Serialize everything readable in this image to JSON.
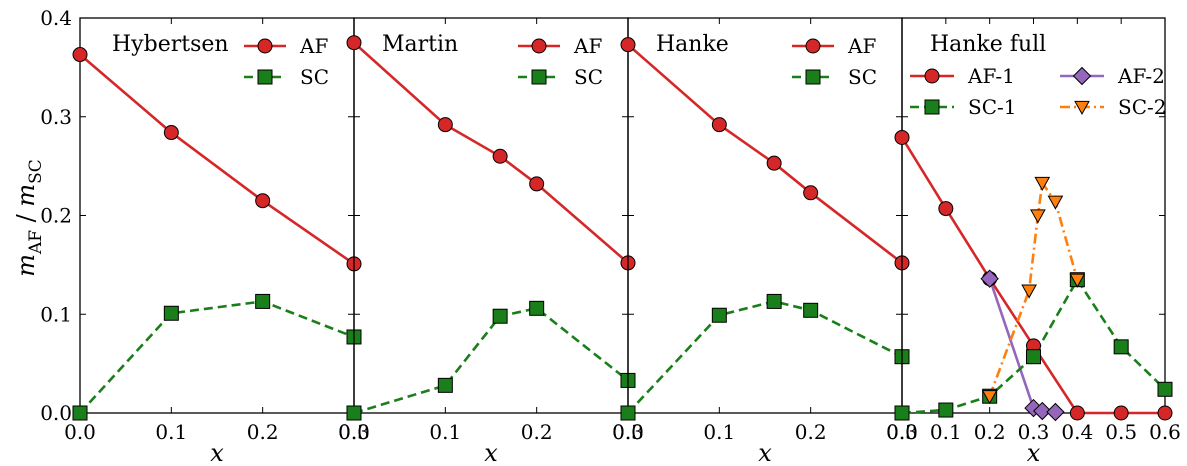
{
  "figure": {
    "ylabel": {
      "m1": "m",
      "sub1": "AF",
      "slash": " / ",
      "m2": "m",
      "sub2": "SC"
    },
    "xlabel": "x"
  },
  "colors": {
    "AF": "#d62728",
    "SC": "#1a7f1a",
    "AF2": "#9467bd",
    "SC2": "#ff7f0e"
  },
  "chart_data": [
    {
      "type": "line",
      "title": "Hybertsen",
      "xlabel": "x",
      "ylabel": "m_AF / m_SC",
      "xlim": [
        0.0,
        0.3
      ],
      "ylim": [
        0.0,
        0.4
      ],
      "xticks": [
        "0.0",
        "0.1",
        "0.2",
        "0.3"
      ],
      "yticks": [
        "0.0",
        "0.1",
        "0.2",
        "0.3",
        "0.4"
      ],
      "legend": {
        "columns": 1
      },
      "series": [
        {
          "name": "AF",
          "color": "#d62728",
          "marker": "circle",
          "dash": "solid",
          "x": [
            0.0,
            0.1,
            0.2,
            0.3
          ],
          "y": [
            0.363,
            0.284,
            0.215,
            0.151
          ]
        },
        {
          "name": "SC",
          "color": "#1a7f1a",
          "marker": "square",
          "dash": "dashed",
          "x": [
            0.0,
            0.1,
            0.2,
            0.3
          ],
          "y": [
            0.0,
            0.101,
            0.113,
            0.077
          ]
        }
      ]
    },
    {
      "type": "line",
      "title": "Martin",
      "xlabel": "x",
      "xlim": [
        0.0,
        0.3
      ],
      "ylim": [
        0.0,
        0.4
      ],
      "xticks": [
        "0.0",
        "0.1",
        "0.2",
        "0.3"
      ],
      "legend": {
        "columns": 1
      },
      "series": [
        {
          "name": "AF",
          "color": "#d62728",
          "marker": "circle",
          "dash": "solid",
          "x": [
            0.0,
            0.1,
            0.16,
            0.2,
            0.3
          ],
          "y": [
            0.375,
            0.292,
            0.26,
            0.232,
            0.152
          ]
        },
        {
          "name": "SC",
          "color": "#1a7f1a",
          "marker": "square",
          "dash": "dashed",
          "x": [
            0.0,
            0.1,
            0.16,
            0.2,
            0.3
          ],
          "y": [
            0.0,
            0.028,
            0.098,
            0.106,
            0.033
          ]
        }
      ]
    },
    {
      "type": "line",
      "title": "Hanke",
      "xlabel": "x",
      "xlim": [
        0.0,
        0.3
      ],
      "ylim": [
        0.0,
        0.4
      ],
      "xticks": [
        "0.0",
        "0.1",
        "0.2",
        "0.3"
      ],
      "legend": {
        "columns": 1
      },
      "series": [
        {
          "name": "AF",
          "color": "#d62728",
          "marker": "circle",
          "dash": "solid",
          "x": [
            0.0,
            0.1,
            0.16,
            0.2,
            0.3
          ],
          "y": [
            0.373,
            0.292,
            0.253,
            0.223,
            0.152
          ]
        },
        {
          "name": "SC",
          "color": "#1a7f1a",
          "marker": "square",
          "dash": "dashed",
          "x": [
            0.0,
            0.1,
            0.16,
            0.2,
            0.3
          ],
          "y": [
            0.0,
            0.099,
            0.113,
            0.104,
            0.057
          ]
        }
      ]
    },
    {
      "type": "line",
      "title": "Hanke full",
      "xlabel": "x",
      "xlim": [
        0.0,
        0.6
      ],
      "ylim": [
        0.0,
        0.4
      ],
      "xticks": [
        "0.0",
        "0.1",
        "0.2",
        "0.3",
        "0.4",
        "0.5",
        "0.6"
      ],
      "legend": {
        "columns": 2
      },
      "series": [
        {
          "name": "AF-1",
          "color": "#d62728",
          "marker": "circle",
          "dash": "solid",
          "x": [
            0.0,
            0.1,
            0.2,
            0.3,
            0.4,
            0.5,
            0.6
          ],
          "y": [
            0.279,
            0.207,
            0.136,
            0.068,
            0.0,
            0.0,
            0.0
          ]
        },
        {
          "name": "AF-2",
          "color": "#9467bd",
          "marker": "diamond",
          "dash": "solid",
          "x": [
            0.2,
            0.3,
            0.32,
            0.35
          ],
          "y": [
            0.136,
            0.005,
            0.002,
            0.001
          ]
        },
        {
          "name": "SC-1",
          "color": "#1a7f1a",
          "marker": "square",
          "dash": "dashed",
          "x": [
            0.0,
            0.1,
            0.2,
            0.3,
            0.4,
            0.5,
            0.6
          ],
          "y": [
            0.0,
            0.003,
            0.017,
            0.057,
            0.135,
            0.067,
            0.024
          ]
        },
        {
          "name": "SC-2",
          "color": "#ff7f0e",
          "marker": "triangle-down",
          "dash": "dashdot",
          "x": [
            0.2,
            0.29,
            0.31,
            0.32,
            0.35,
            0.4
          ],
          "y": [
            0.017,
            0.124,
            0.2,
            0.233,
            0.214,
            0.135
          ]
        }
      ]
    }
  ]
}
